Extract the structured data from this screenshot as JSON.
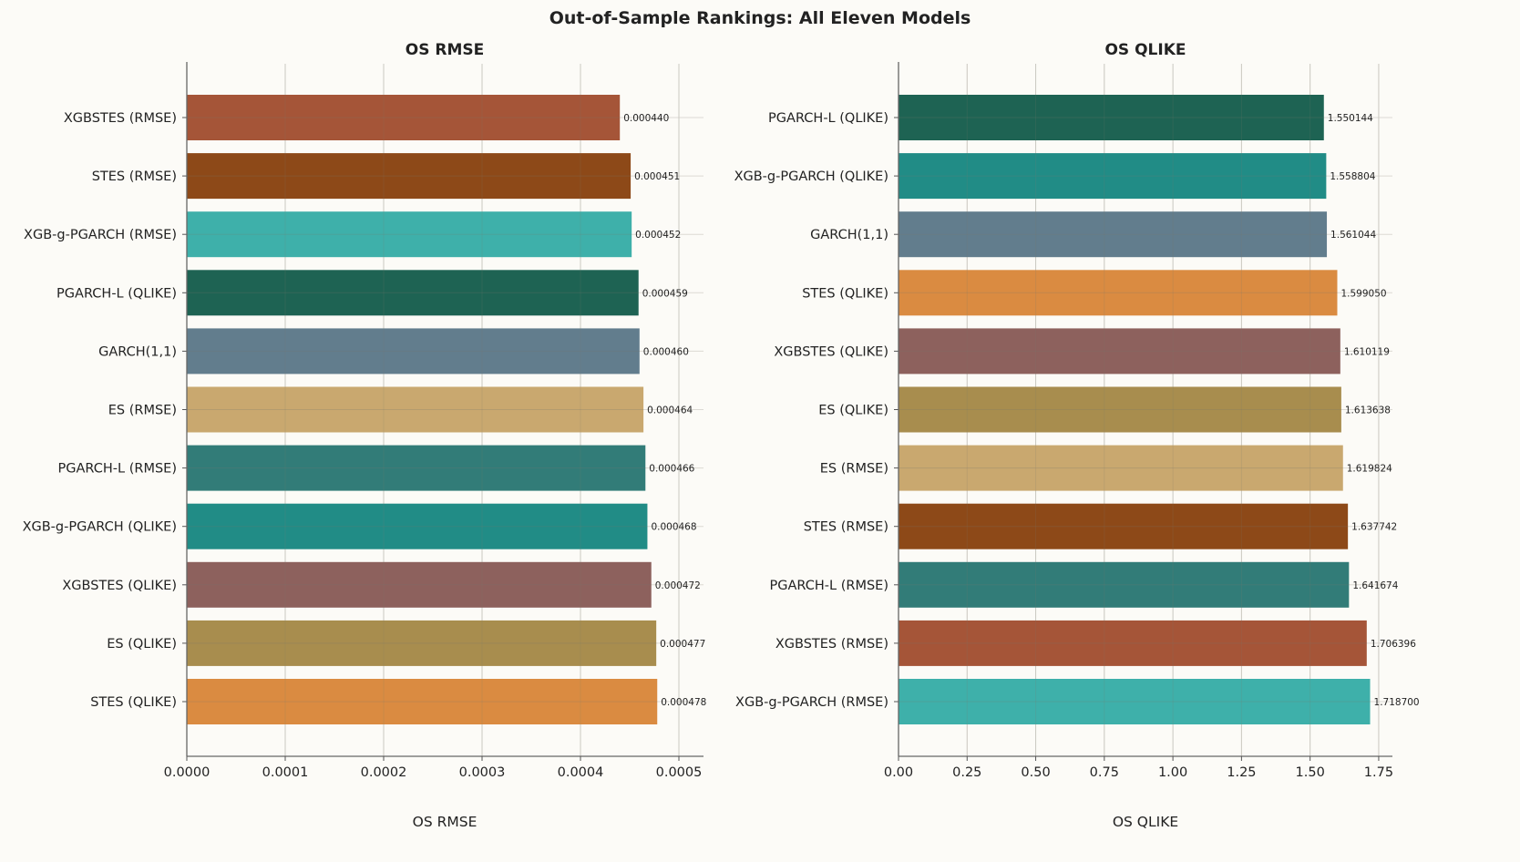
{
  "chart_data": [
    {
      "type": "bar",
      "orientation": "horizontal",
      "title": "OS RMSE",
      "xlabel": "OS RMSE",
      "ylabel": "",
      "xlim": [
        0,
        0.000525
      ],
      "xticks": [
        0,
        0.0001,
        0.0002,
        0.0003,
        0.0004,
        0.0005
      ],
      "xtick_labels": [
        "0.0000",
        "0.0001",
        "0.0002",
        "0.0003",
        "0.0004",
        "0.0005"
      ],
      "grid": true,
      "categories": [
        "XGBSTES (RMSE)",
        "STES (RMSE)",
        "XGB-g-PGARCH (RMSE)",
        "PGARCH-L (QLIKE)",
        "GARCH(1,1)",
        "ES (RMSE)",
        "PGARCH-L (RMSE)",
        "XGB-g-PGARCH (QLIKE)",
        "XGBSTES (QLIKE)",
        "ES (QLIKE)",
        "STES (QLIKE)"
      ],
      "values": [
        0.00044,
        0.000451,
        0.000452,
        0.000459,
        0.00046,
        0.000464,
        0.000466,
        0.000468,
        0.000472,
        0.000477,
        0.000478
      ],
      "value_labels": [
        "0.000440",
        "0.000451",
        "0.000452",
        "0.000459",
        "0.000460",
        "0.000464",
        "0.000466",
        "0.000468",
        "0.000472",
        "0.000477",
        "0.000478"
      ],
      "colors": [
        "#a35234",
        "#8b4513",
        "#3aaea8",
        "#1a6050",
        "#5f7a8b",
        "#c8a66c",
        "#2e7975",
        "#1d8a84",
        "#8b5e5a",
        "#a68b4a",
        "#d9893d"
      ]
    },
    {
      "type": "bar",
      "orientation": "horizontal",
      "title": "OS QLIKE",
      "xlabel": "OS QLIKE",
      "ylabel": "",
      "xlim": [
        0,
        1.8
      ],
      "xticks": [
        0,
        0.25,
        0.5,
        0.75,
        1.0,
        1.25,
        1.5,
        1.75
      ],
      "xtick_labels": [
        "0.00",
        "0.25",
        "0.50",
        "0.75",
        "1.00",
        "1.25",
        "1.50",
        "1.75"
      ],
      "grid": true,
      "categories": [
        "PGARCH-L (QLIKE)",
        "XGB-g-PGARCH (QLIKE)",
        "GARCH(1,1)",
        "STES (QLIKE)",
        "XGBSTES (QLIKE)",
        "ES (QLIKE)",
        "ES (RMSE)",
        "STES (RMSE)",
        "PGARCH-L (RMSE)",
        "XGBSTES (RMSE)",
        "XGB-g-PGARCH (RMSE)"
      ],
      "values": [
        1.550144,
        1.558804,
        1.561044,
        1.59905,
        1.610119,
        1.613638,
        1.619824,
        1.637742,
        1.641674,
        1.706396,
        1.7187
      ],
      "value_labels": [
        "1.550144",
        "1.558804",
        "1.561044",
        "1.599050",
        "1.610119",
        "1.613638",
        "1.619824",
        "1.637742",
        "1.641674",
        "1.706396",
        "1.718700"
      ],
      "colors": [
        "#1a6050",
        "#1d8a84",
        "#5f7a8b",
        "#d9893d",
        "#8b5e5a",
        "#a68b4a",
        "#c8a66c",
        "#8b4513",
        "#2e7975",
        "#a35234",
        "#3aaea8"
      ]
    }
  ],
  "figure": {
    "suptitle": "Out-of-Sample Rankings: All Eleven Models"
  }
}
